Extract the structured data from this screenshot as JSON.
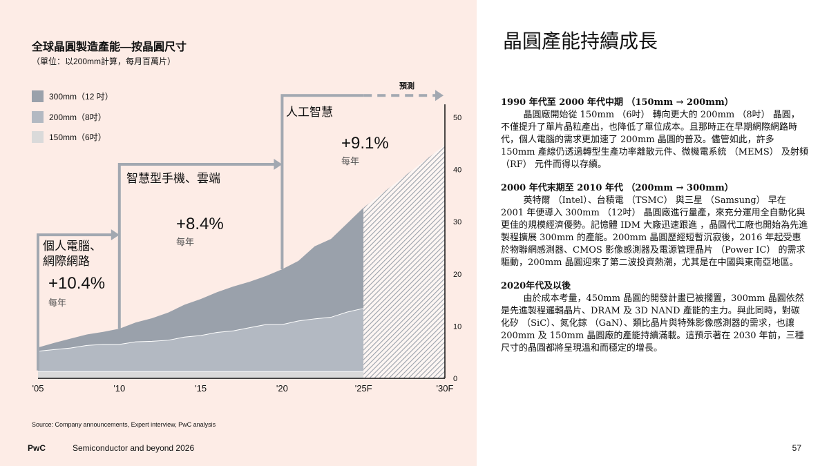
{
  "left": {
    "title": "全球晶圓製造產能—按晶圓尺寸",
    "subtitle": "（單位：以200mm計算，每月百萬片）",
    "legend": [
      {
        "label": "300mm（12 吋）",
        "color": "#9aa1ab"
      },
      {
        "label": "200mm（8吋）",
        "color": "#b3b9c2"
      },
      {
        "label": "150mm（6吋）",
        "color": "#dadada"
      }
    ],
    "forecast_label": "預測",
    "eras": [
      {
        "label_lines": [
          "個人電腦、",
          "網際網路"
        ],
        "growth": "+10.4%",
        "unit": "每年"
      },
      {
        "label_lines": [
          "智慧型手機、雲端"
        ],
        "growth": "+8.4%",
        "unit": "每年"
      },
      {
        "label_lines": [
          "人工智慧"
        ],
        "growth": "+9.1%",
        "unit": "每年"
      }
    ],
    "source": "Source: Company announcements, Expert interview, PwC analysis"
  },
  "chart_data": {
    "type": "area",
    "title": "全球晶圓製造產能—按晶圓尺寸",
    "ylabel": "以200mm計算，每月百萬片",
    "x": [
      2005,
      2006,
      2007,
      2008,
      2009,
      2010,
      2011,
      2012,
      2013,
      2014,
      2015,
      2016,
      2017,
      2018,
      2019,
      2020,
      2021,
      2022,
      2023,
      2024,
      2025
    ],
    "x_tick_labels": [
      "'05",
      "'10",
      "'15",
      "'20",
      "'25F",
      "'30F"
    ],
    "x_tick_values": [
      2005,
      2010,
      2015,
      2020,
      2025,
      2030
    ],
    "y_ticks": [
      0,
      10,
      20,
      30,
      40,
      50
    ],
    "ylim": [
      0,
      53
    ],
    "xlim": [
      2005,
      2030
    ],
    "series": [
      {
        "name": "150mm（6吋）",
        "values": [
          1.3,
          1.3,
          1.3,
          1.3,
          1.3,
          1.3,
          1.3,
          1.3,
          1.3,
          1.3,
          1.3,
          1.3,
          1.3,
          1.3,
          1.3,
          1.3,
          1.3,
          1.3,
          1.3,
          1.3,
          1.3
        ]
      },
      {
        "name": "200mm（8吋）",
        "cumulative_top": [
          5.2,
          5.5,
          5.8,
          6.3,
          6.5,
          6.5,
          7.0,
          7.1,
          7.3,
          7.9,
          8.2,
          8.8,
          9.1,
          9.7,
          10.3,
          10.3,
          11.0,
          11.4,
          11.7,
          12.7,
          13.4
        ]
      },
      {
        "name": "300mm（12 吋）",
        "cumulative_top": [
          5.9,
          6.8,
          7.6,
          8.4,
          8.9,
          9.5,
          10.7,
          11.5,
          12.6,
          14.1,
          15.2,
          16.5,
          17.6,
          18.5,
          19.6,
          20.9,
          22.5,
          25.3,
          26.7,
          29.7,
          32.7
        ]
      }
    ],
    "forecast": {
      "x": [
        2025,
        2030
      ],
      "total": [
        32.7,
        44.7
      ],
      "style": "hatched"
    }
  },
  "right": {
    "title": "晶圓產能持續成長",
    "sections": [
      {
        "heading": "1990 年代至 2000 年代中期 （150mm → 200mm）",
        "body": "晶圓廠開始從 150mm （6吋） 轉向更大的 200mm （8吋） 晶圓，不僅提升了單片晶粒產出，也降低了單位成本。且那時正在早期網際網路時代，個人電腦的需求更加速了 200mm 晶圓的普及。儘管如此，許多 150mm 產線仍透過轉型生產功率離散元件、微機電系統 （MEMS） 及射頻 （RF） 元件而得以存續。"
      },
      {
        "heading": "2000 年代末期至 2010 年代 （200mm → 300mm）",
        "body": "英特爾 （Intel）、台積電 （TSMC） 與三星 （Samsung） 早在 2001 年便導入 300mm （12吋） 晶圓廠進行量產，來充分運用全自動化與更佳的規模經濟優勢。記憶體 IDM 大廠迅速跟進 ，晶圓代工廠也開始為先進製程擴展 300mm 的產能。200mm 晶圓歷經短暫沉寂後，2016 年起受惠於物聯網感測器、CMOS 影像感測器及電源管理晶片 （Power IC） 的需求驅動，200mm 晶圓迎來了第二波投資熱潮，尤其是在中國與東南亞地區。"
      },
      {
        "heading": "2020年代及以後",
        "body": "由於成本考量，450mm 晶圓的開發計畫已被擱置，300mm 晶圓依然是先進製程邏輯晶片、DRAM 及 3D NAND 產能的主力。與此同時，對碳化矽 （SiC）、氮化鎵 （GaN）、類比晶片與特殊影像感測器的需求，也讓 200mm 及 150mm 晶圓廠的產能持續滿載。這預示著在 2030 年前，三種尺寸的晶圓都將呈現溫和而穩定的增長。"
      }
    ]
  },
  "footer": {
    "brand": "PwC",
    "report": "Semiconductor and beyond 2026",
    "page": "57"
  }
}
